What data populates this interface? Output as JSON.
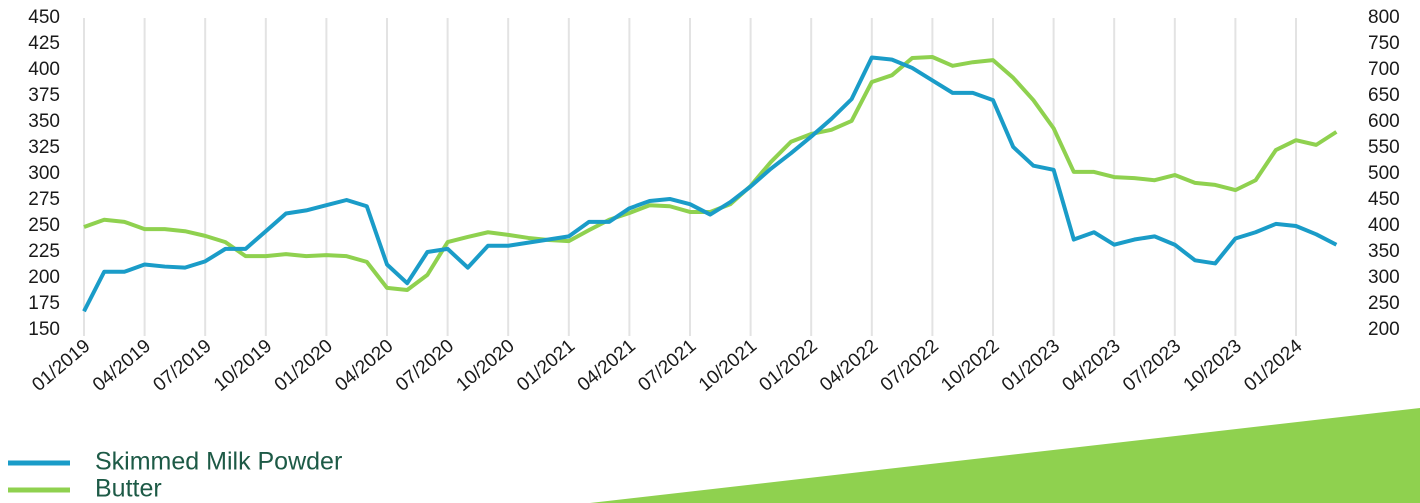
{
  "chart_data": {
    "type": "line",
    "x": [
      "01/2019",
      "02/2019",
      "03/2019",
      "04/2019",
      "05/2019",
      "06/2019",
      "07/2019",
      "08/2019",
      "09/2019",
      "10/2019",
      "11/2019",
      "12/2019",
      "01/2020",
      "02/2020",
      "03/2020",
      "04/2020",
      "05/2020",
      "06/2020",
      "07/2020",
      "08/2020",
      "09/2020",
      "10/2020",
      "11/2020",
      "12/2020",
      "01/2021",
      "02/2021",
      "03/2021",
      "04/2021",
      "05/2021",
      "06/2021",
      "07/2021",
      "08/2021",
      "09/2021",
      "10/2021",
      "11/2021",
      "12/2021",
      "01/2022",
      "02/2022",
      "03/2022",
      "04/2022",
      "05/2022",
      "06/2022",
      "07/2022",
      "08/2022",
      "09/2022",
      "10/2022",
      "11/2022",
      "12/2022",
      "01/2023",
      "02/2023",
      "03/2023",
      "04/2023",
      "05/2023",
      "06/2023",
      "07/2023",
      "08/2023",
      "09/2023",
      "10/2023",
      "11/2023",
      "12/2023",
      "01/2024",
      "02/2024",
      "03/2024"
    ],
    "xticks": [
      "01/2019",
      "04/2019",
      "07/2019",
      "10/2019",
      "01/2020",
      "04/2020",
      "07/2020",
      "10/2020",
      "01/2021",
      "04/2021",
      "07/2021",
      "10/2021",
      "01/2022",
      "04/2022",
      "07/2022",
      "10/2022",
      "01/2023",
      "04/2023",
      "07/2023",
      "10/2023",
      "01/2024"
    ],
    "ylim": [
      150,
      450
    ],
    "yticks": [
      150,
      175,
      200,
      225,
      250,
      275,
      300,
      325,
      350,
      375,
      400,
      425,
      450
    ],
    "y2lim": [
      200,
      800
    ],
    "y2ticks": [
      200,
      250,
      300,
      350,
      400,
      450,
      500,
      550,
      600,
      650,
      700,
      750,
      800
    ],
    "grid": true,
    "series": [
      {
        "name": "Skimmed Milk Powder",
        "color": "#1a9cc8",
        "values": [
          168,
          206,
          206,
          213,
          211,
          210,
          216,
          228,
          228,
          245,
          262,
          265,
          270,
          275,
          269,
          213,
          195,
          225,
          228,
          210,
          231,
          231,
          234,
          237,
          240,
          254,
          254,
          267,
          274,
          276,
          271,
          261,
          273,
          288,
          305,
          320,
          336,
          353,
          372,
          412,
          410,
          402,
          390,
          378,
          378,
          371,
          326,
          308,
          304,
          237,
          244,
          232,
          237,
          240,
          232,
          217,
          214,
          238,
          244,
          252,
          250,
          242,
          232
        ]
      },
      {
        "name": "Butter",
        "color": "#8fd14f",
        "axis": "y2",
        "values": [
          398,
          412,
          408,
          394,
          394,
          390,
          381,
          369,
          342,
          342,
          346,
          342,
          344,
          342,
          331,
          281,
          277,
          306,
          369,
          379,
          388,
          383,
          377,
          373,
          371,
          392,
          412,
          425,
          440,
          438,
          427,
          427,
          442,
          477,
          523,
          562,
          577,
          585,
          602,
          677,
          690,
          723,
          725,
          708,
          715,
          719,
          685,
          642,
          588,
          504,
          504,
          494,
          492,
          488,
          498,
          483,
          479,
          469,
          488,
          546,
          565,
          556,
          581
        ]
      }
    ]
  }
}
